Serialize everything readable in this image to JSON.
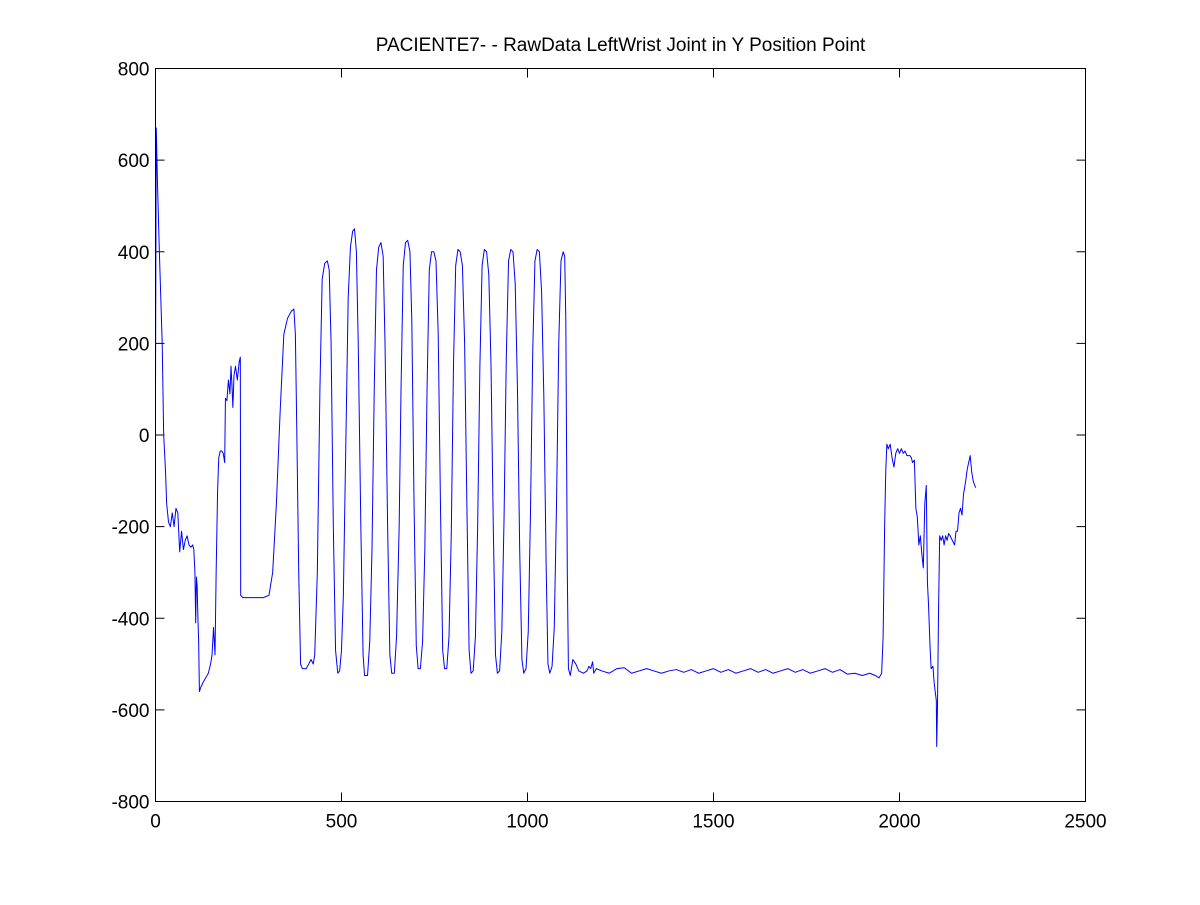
{
  "chart_data": {
    "type": "line",
    "title": "PACIENTE7- - RawData LeftWrist Joint in Y Position Point",
    "xlabel": "",
    "ylabel": "",
    "xlim": [
      0,
      2500
    ],
    "ylim": [
      -800,
      800
    ],
    "x_ticks": [
      0,
      500,
      1000,
      1500,
      2000,
      2500
    ],
    "y_ticks": [
      -800,
      -600,
      -400,
      -200,
      0,
      200,
      400,
      600,
      800
    ],
    "x_tick_labels": [
      "0",
      "500",
      "1000",
      "1500",
      "2000",
      "2500"
    ],
    "y_tick_labels": [
      "-800",
      "-600",
      "-400",
      "-200",
      "0",
      "200",
      "400",
      "600",
      "800"
    ],
    "grid": false,
    "legend": "none",
    "series": [
      {
        "color": "#0000ff",
        "points": [
          [
            0,
            100
          ],
          [
            2,
            670
          ],
          [
            5,
            560
          ],
          [
            10,
            410
          ],
          [
            18,
            200
          ],
          [
            22,
            0
          ],
          [
            27,
            -80
          ],
          [
            30,
            -150
          ],
          [
            35,
            -190
          ],
          [
            40,
            -200
          ],
          [
            45,
            -170
          ],
          [
            50,
            -200
          ],
          [
            55,
            -160
          ],
          [
            60,
            -170
          ],
          [
            65,
            -255
          ],
          [
            70,
            -210
          ],
          [
            75,
            -250
          ],
          [
            80,
            -230
          ],
          [
            85,
            -220
          ],
          [
            90,
            -240
          ],
          [
            95,
            -245
          ],
          [
            100,
            -240
          ],
          [
            103,
            -250
          ],
          [
            106,
            -300
          ],
          [
            108,
            -410
          ],
          [
            110,
            -310
          ],
          [
            112,
            -330
          ],
          [
            114,
            -400
          ],
          [
            116,
            -450
          ],
          [
            118,
            -560
          ],
          [
            122,
            -550
          ],
          [
            128,
            -540
          ],
          [
            135,
            -530
          ],
          [
            142,
            -520
          ],
          [
            148,
            -500
          ],
          [
            152,
            -480
          ],
          [
            156,
            -420
          ],
          [
            160,
            -480
          ],
          [
            163,
            -300
          ],
          [
            167,
            -120
          ],
          [
            170,
            -50
          ],
          [
            174,
            -35
          ],
          [
            178,
            -35
          ],
          [
            182,
            -40
          ],
          [
            186,
            -60
          ],
          [
            188,
            80
          ],
          [
            192,
            75
          ],
          [
            196,
            120
          ],
          [
            200,
            90
          ],
          [
            203,
            150
          ],
          [
            206,
            100
          ],
          [
            208,
            60
          ],
          [
            211,
            130
          ],
          [
            215,
            150
          ],
          [
            220,
            120
          ],
          [
            225,
            160
          ],
          [
            228,
            170
          ],
          [
            229,
            -350
          ],
          [
            235,
            -355
          ],
          [
            250,
            -355
          ],
          [
            270,
            -355
          ],
          [
            290,
            -355
          ],
          [
            305,
            -350
          ],
          [
            315,
            -300
          ],
          [
            325,
            -150
          ],
          [
            335,
            50
          ],
          [
            345,
            220
          ],
          [
            355,
            255
          ],
          [
            365,
            270
          ],
          [
            372,
            275
          ],
          [
            376,
            220
          ],
          [
            380,
            0
          ],
          [
            385,
            -300
          ],
          [
            390,
            -500
          ],
          [
            395,
            -510
          ],
          [
            405,
            -510
          ],
          [
            412,
            -500
          ],
          [
            418,
            -490
          ],
          [
            424,
            -500
          ],
          [
            428,
            -480
          ],
          [
            435,
            -300
          ],
          [
            442,
            100
          ],
          [
            448,
            340
          ],
          [
            455,
            375
          ],
          [
            462,
            380
          ],
          [
            467,
            360
          ],
          [
            472,
            200
          ],
          [
            478,
            -200
          ],
          [
            484,
            -470
          ],
          [
            490,
            -520
          ],
          [
            495,
            -515
          ],
          [
            500,
            -470
          ],
          [
            505,
            -350
          ],
          [
            512,
            0
          ],
          [
            518,
            300
          ],
          [
            524,
            410
          ],
          [
            530,
            445
          ],
          [
            535,
            450
          ],
          [
            540,
            400
          ],
          [
            545,
            200
          ],
          [
            552,
            -200
          ],
          [
            558,
            -480
          ],
          [
            562,
            -525
          ],
          [
            570,
            -525
          ],
          [
            576,
            -450
          ],
          [
            582,
            -250
          ],
          [
            588,
            100
          ],
          [
            594,
            360
          ],
          [
            600,
            410
          ],
          [
            606,
            420
          ],
          [
            612,
            390
          ],
          [
            617,
            200
          ],
          [
            624,
            -200
          ],
          [
            630,
            -480
          ],
          [
            635,
            -520
          ],
          [
            642,
            -520
          ],
          [
            648,
            -440
          ],
          [
            655,
            -200
          ],
          [
            660,
            100
          ],
          [
            666,
            370
          ],
          [
            672,
            420
          ],
          [
            678,
            425
          ],
          [
            684,
            400
          ],
          [
            689,
            250
          ],
          [
            695,
            -150
          ],
          [
            701,
            -460
          ],
          [
            706,
            -510
          ],
          [
            712,
            -510
          ],
          [
            718,
            -450
          ],
          [
            724,
            -250
          ],
          [
            730,
            100
          ],
          [
            736,
            360
          ],
          [
            742,
            400
          ],
          [
            748,
            400
          ],
          [
            754,
            380
          ],
          [
            760,
            220
          ],
          [
            766,
            -150
          ],
          [
            772,
            -470
          ],
          [
            777,
            -510
          ],
          [
            783,
            -510
          ],
          [
            789,
            -440
          ],
          [
            795,
            -220
          ],
          [
            801,
            150
          ],
          [
            807,
            370
          ],
          [
            813,
            405
          ],
          [
            819,
            400
          ],
          [
            825,
            370
          ],
          [
            831,
            200
          ],
          [
            837,
            -150
          ],
          [
            843,
            -470
          ],
          [
            848,
            -520
          ],
          [
            854,
            -515
          ],
          [
            860,
            -440
          ],
          [
            866,
            -200
          ],
          [
            872,
            150
          ],
          [
            878,
            370
          ],
          [
            884,
            405
          ],
          [
            890,
            400
          ],
          [
            896,
            350
          ],
          [
            902,
            150
          ],
          [
            908,
            -200
          ],
          [
            914,
            -480
          ],
          [
            919,
            -520
          ],
          [
            925,
            -515
          ],
          [
            931,
            -430
          ],
          [
            937,
            -180
          ],
          [
            943,
            170
          ],
          [
            949,
            380
          ],
          [
            955,
            405
          ],
          [
            961,
            400
          ],
          [
            967,
            330
          ],
          [
            973,
            100
          ],
          [
            979,
            -250
          ],
          [
            985,
            -490
          ],
          [
            990,
            -520
          ],
          [
            996,
            -510
          ],
          [
            1002,
            -430
          ],
          [
            1008,
            -170
          ],
          [
            1014,
            180
          ],
          [
            1020,
            380
          ],
          [
            1026,
            405
          ],
          [
            1032,
            400
          ],
          [
            1038,
            310
          ],
          [
            1044,
            80
          ],
          [
            1050,
            -280
          ],
          [
            1055,
            -500
          ],
          [
            1060,
            -520
          ],
          [
            1066,
            -505
          ],
          [
            1072,
            -420
          ],
          [
            1078,
            -150
          ],
          [
            1084,
            200
          ],
          [
            1090,
            380
          ],
          [
            1096,
            400
          ],
          [
            1100,
            390
          ],
          [
            1103,
            250
          ],
          [
            1107,
            -300
          ],
          [
            1110,
            -510
          ],
          [
            1115,
            -525
          ],
          [
            1122,
            -490
          ],
          [
            1130,
            -500
          ],
          [
            1138,
            -515
          ],
          [
            1150,
            -520
          ],
          [
            1160,
            -515
          ],
          [
            1165,
            -505
          ],
          [
            1170,
            -510
          ],
          [
            1175,
            -495
          ],
          [
            1178,
            -520
          ],
          [
            1185,
            -510
          ],
          [
            1200,
            -515
          ],
          [
            1220,
            -520
          ],
          [
            1240,
            -510
          ],
          [
            1260,
            -508
          ],
          [
            1280,
            -520
          ],
          [
            1300,
            -515
          ],
          [
            1320,
            -510
          ],
          [
            1340,
            -515
          ],
          [
            1360,
            -520
          ],
          [
            1380,
            -515
          ],
          [
            1400,
            -512
          ],
          [
            1420,
            -518
          ],
          [
            1440,
            -512
          ],
          [
            1460,
            -520
          ],
          [
            1480,
            -515
          ],
          [
            1500,
            -510
          ],
          [
            1520,
            -518
          ],
          [
            1540,
            -512
          ],
          [
            1560,
            -520
          ],
          [
            1580,
            -515
          ],
          [
            1600,
            -510
          ],
          [
            1620,
            -518
          ],
          [
            1640,
            -512
          ],
          [
            1660,
            -520
          ],
          [
            1680,
            -515
          ],
          [
            1700,
            -510
          ],
          [
            1720,
            -518
          ],
          [
            1740,
            -512
          ],
          [
            1760,
            -520
          ],
          [
            1780,
            -515
          ],
          [
            1800,
            -510
          ],
          [
            1820,
            -518
          ],
          [
            1840,
            -512
          ],
          [
            1860,
            -522
          ],
          [
            1880,
            -520
          ],
          [
            1900,
            -525
          ],
          [
            1920,
            -520
          ],
          [
            1935,
            -525
          ],
          [
            1945,
            -530
          ],
          [
            1952,
            -520
          ],
          [
            1956,
            -440
          ],
          [
            1960,
            -200
          ],
          [
            1963,
            -80
          ],
          [
            1966,
            -20
          ],
          [
            1970,
            -30
          ],
          [
            1975,
            -20
          ],
          [
            1980,
            -50
          ],
          [
            1985,
            -70
          ],
          [
            1990,
            -40
          ],
          [
            1995,
            -30
          ],
          [
            2000,
            -40
          ],
          [
            2005,
            -30
          ],
          [
            2010,
            -40
          ],
          [
            2015,
            -35
          ],
          [
            2020,
            -45
          ],
          [
            2028,
            -45
          ],
          [
            2032,
            -50
          ],
          [
            2035,
            -60
          ],
          [
            2040,
            -55
          ],
          [
            2044,
            -160
          ],
          [
            2048,
            -180
          ],
          [
            2052,
            -240
          ],
          [
            2056,
            -220
          ],
          [
            2060,
            -260
          ],
          [
            2064,
            -290
          ],
          [
            2068,
            -150
          ],
          [
            2072,
            -110
          ],
          [
            2075,
            -320
          ],
          [
            2078,
            -370
          ],
          [
            2082,
            -460
          ],
          [
            2085,
            -510
          ],
          [
            2090,
            -505
          ],
          [
            2093,
            -540
          ],
          [
            2096,
            -560
          ],
          [
            2099,
            -580
          ],
          [
            2100,
            -680
          ],
          [
            2102,
            -600
          ],
          [
            2105,
            -380
          ],
          [
            2108,
            -220
          ],
          [
            2112,
            -230
          ],
          [
            2116,
            -220
          ],
          [
            2120,
            -240
          ],
          [
            2124,
            -220
          ],
          [
            2128,
            -230
          ],
          [
            2132,
            -215
          ],
          [
            2136,
            -220
          ],
          [
            2142,
            -230
          ],
          [
            2148,
            -240
          ],
          [
            2152,
            -210
          ],
          [
            2156,
            -210
          ],
          [
            2160,
            -170
          ],
          [
            2164,
            -160
          ],
          [
            2168,
            -175
          ],
          [
            2172,
            -130
          ],
          [
            2178,
            -100
          ],
          [
            2182,
            -75
          ],
          [
            2186,
            -60
          ],
          [
            2190,
            -45
          ],
          [
            2194,
            -80
          ],
          [
            2198,
            -100
          ],
          [
            2202,
            -110
          ],
          [
            2205,
            -115
          ]
        ]
      }
    ]
  }
}
